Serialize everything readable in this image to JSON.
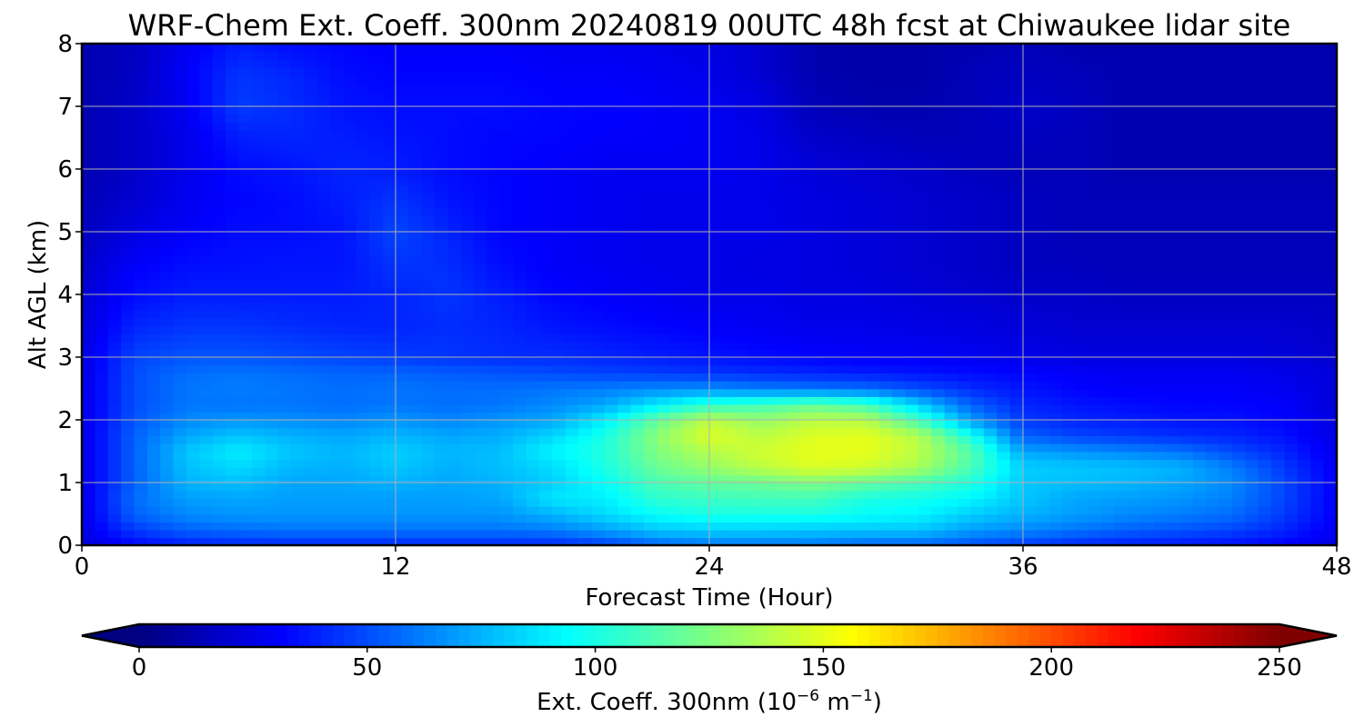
{
  "chart_data": {
    "type": "heatmap",
    "title": "WRF-Chem Ext. Coeff. 300nm  20240819 00UTC 48h fcst at Chiwaukee lidar site",
    "xlabel": "Forecast Time (Hour)",
    "ylabel": "Alt AGL (km)",
    "xlim": [
      0,
      48
    ],
    "ylim": [
      0,
      8
    ],
    "x_ticks": [
      0,
      12,
      24,
      36,
      48
    ],
    "y_ticks": [
      0,
      1,
      2,
      3,
      4,
      5,
      6,
      7,
      8
    ],
    "grid": true,
    "colorbar": {
      "label": "Ext. Coeff. 300nm  (10",
      "label_exponent": "−6",
      "label_unit": " m",
      "label_unit_exponent": "−1",
      "label_close": ")",
      "range": [
        0,
        250
      ],
      "ticks": [
        0,
        50,
        100,
        150,
        200,
        250
      ],
      "extend": "both",
      "colormap": "jet"
    },
    "x": [
      0,
      2,
      4,
      6,
      8,
      10,
      12,
      14,
      16,
      18,
      20,
      22,
      24,
      26,
      28,
      30,
      32,
      34,
      36,
      38,
      40,
      42,
      44,
      46,
      48
    ],
    "y": [
      0,
      0.25,
      0.5,
      0.75,
      1,
      1.25,
      1.5,
      1.75,
      2,
      2.25,
      2.5,
      2.75,
      3,
      3.5,
      4,
      4.5,
      5,
      5.5,
      6,
      6.5,
      7,
      7.5,
      8
    ],
    "values": [
      [
        22,
        32,
        38,
        40,
        40,
        40,
        40,
        40,
        40,
        40,
        45,
        55,
        60,
        60,
        60,
        55,
        55,
        50,
        45,
        40,
        38,
        36,
        34,
        30,
        24
      ],
      [
        25,
        45,
        55,
        58,
        60,
        60,
        60,
        60,
        60,
        62,
        70,
        80,
        82,
        82,
        80,
        80,
        80,
        70,
        65,
        60,
        55,
        52,
        48,
        40,
        28
      ],
      [
        25,
        55,
        65,
        68,
        68,
        68,
        68,
        68,
        68,
        75,
        85,
        95,
        100,
        100,
        100,
        95,
        92,
        82,
        75,
        70,
        65,
        62,
        58,
        45,
        30
      ],
      [
        25,
        58,
        70,
        72,
        70,
        70,
        70,
        70,
        72,
        88,
        90,
        105,
        108,
        110,
        110,
        100,
        98,
        92,
        80,
        72,
        70,
        68,
        62,
        48,
        30
      ],
      [
        25,
        55,
        75,
        78,
        72,
        72,
        75,
        72,
        75,
        82,
        95,
        112,
        118,
        120,
        125,
        118,
        112,
        102,
        80,
        78,
        76,
        72,
        65,
        48,
        30
      ],
      [
        25,
        55,
        78,
        85,
        76,
        74,
        80,
        74,
        78,
        85,
        100,
        120,
        130,
        140,
        148,
        145,
        135,
        112,
        82,
        80,
        78,
        75,
        62,
        45,
        28
      ],
      [
        25,
        55,
        80,
        90,
        80,
        76,
        82,
        76,
        78,
        92,
        102,
        125,
        138,
        145,
        150,
        150,
        140,
        115,
        72,
        68,
        64,
        60,
        50,
        40,
        26
      ],
      [
        25,
        55,
        72,
        80,
        75,
        72,
        76,
        72,
        74,
        84,
        100,
        128,
        148,
        140,
        148,
        150,
        138,
        100,
        55,
        48,
        45,
        42,
        40,
        35,
        25
      ],
      [
        25,
        52,
        65,
        68,
        66,
        64,
        68,
        64,
        68,
        72,
        90,
        118,
        140,
        130,
        140,
        138,
        110,
        70,
        45,
        40,
        38,
        36,
        35,
        32,
        24
      ],
      [
        25,
        50,
        60,
        60,
        60,
        58,
        60,
        58,
        60,
        65,
        72,
        90,
        105,
        110,
        118,
        110,
        82,
        55,
        40,
        36,
        34,
        32,
        32,
        30,
        22
      ],
      [
        25,
        50,
        60,
        62,
        60,
        58,
        60,
        58,
        58,
        60,
        62,
        65,
        66,
        62,
        60,
        58,
        50,
        42,
        36,
        32,
        30,
        30,
        30,
        28,
        22
      ],
      [
        24,
        50,
        58,
        60,
        58,
        56,
        56,
        54,
        52,
        50,
        48,
        46,
        44,
        42,
        40,
        38,
        36,
        34,
        32,
        30,
        28,
        28,
        28,
        26,
        22
      ],
      [
        24,
        48,
        52,
        52,
        50,
        48,
        46,
        44,
        42,
        42,
        40,
        38,
        36,
        34,
        32,
        30,
        30,
        28,
        26,
        24,
        24,
        24,
        24,
        22,
        20
      ],
      [
        22,
        40,
        44,
        44,
        42,
        40,
        40,
        42,
        40,
        36,
        34,
        32,
        30,
        28,
        26,
        26,
        25,
        24,
        22,
        20,
        20,
        20,
        20,
        20,
        18
      ],
      [
        20,
        34,
        38,
        38,
        38,
        38,
        40,
        44,
        38,
        32,
        30,
        28,
        26,
        26,
        24,
        24,
        22,
        20,
        18,
        18,
        16,
        16,
        16,
        16,
        16
      ],
      [
        18,
        30,
        34,
        35,
        36,
        36,
        44,
        42,
        34,
        30,
        28,
        26,
        26,
        24,
        24,
        22,
        20,
        18,
        16,
        15,
        14,
        14,
        14,
        14,
        14
      ],
      [
        16,
        24,
        30,
        34,
        34,
        36,
        48,
        40,
        32,
        30,
        28,
        26,
        26,
        26,
        24,
        22,
        20,
        18,
        16,
        14,
        14,
        14,
        14,
        14,
        14
      ],
      [
        14,
        20,
        28,
        32,
        34,
        38,
        44,
        36,
        32,
        30,
        28,
        26,
        26,
        26,
        24,
        22,
        20,
        18,
        16,
        14,
        14,
        14,
        14,
        14,
        14
      ],
      [
        12,
        18,
        26,
        34,
        36,
        40,
        38,
        34,
        32,
        30,
        28,
        28,
        28,
        26,
        22,
        20,
        18,
        16,
        14,
        14,
        12,
        12,
        12,
        12,
        12
      ],
      [
        12,
        18,
        26,
        38,
        40,
        38,
        36,
        34,
        32,
        32,
        30,
        30,
        28,
        26,
        18,
        16,
        14,
        14,
        16,
        14,
        12,
        12,
        12,
        12,
        12
      ],
      [
        12,
        18,
        28,
        46,
        42,
        36,
        34,
        34,
        34,
        32,
        32,
        30,
        28,
        24,
        14,
        12,
        12,
        14,
        18,
        16,
        12,
        12,
        12,
        12,
        12
      ],
      [
        12,
        16,
        30,
        44,
        40,
        34,
        32,
        32,
        32,
        30,
        30,
        28,
        26,
        20,
        12,
        10,
        10,
        14,
        16,
        14,
        12,
        12,
        12,
        12,
        12
      ],
      [
        12,
        16,
        28,
        38,
        34,
        32,
        30,
        30,
        30,
        28,
        28,
        26,
        24,
        20,
        12,
        10,
        10,
        12,
        14,
        12,
        12,
        12,
        12,
        12,
        12
      ]
    ]
  }
}
